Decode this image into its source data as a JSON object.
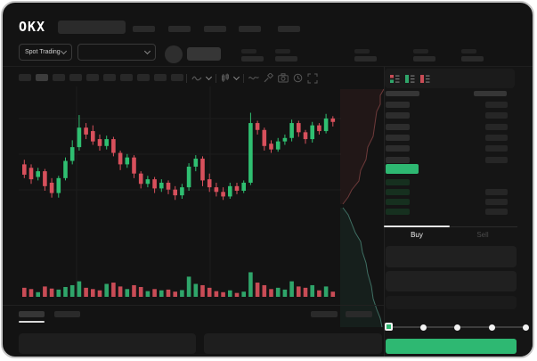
{
  "app": {
    "logo_text": "OKX",
    "nav_item_count": 5
  },
  "ticker_bar": {
    "market_selector_label": "Spot Trading",
    "stat_group_count": 5
  },
  "chart_toolbar": {
    "interval_pill_count": 10,
    "active_pill_index": 1,
    "icons": [
      "indicator-dropdown-icon",
      "candle-type-dropdown-icon",
      "line-tool-icon",
      "brush-icon",
      "camera-icon",
      "history-icon",
      "fullscreen-icon"
    ]
  },
  "order_book": {
    "view_mode_icons": [
      "book-combined-icon",
      "book-bids-icon",
      "book-asks-icon"
    ],
    "ask_rows": 6,
    "bid_rows": 4,
    "header_columns": 2
  },
  "trade_form": {
    "buy_tab": "Buy",
    "sell_tab": "Sell",
    "input_count": 2,
    "slider_stops": 5,
    "slider_active_stop": 0
  },
  "bottom_panel": {
    "tab_count": 2,
    "active_tab_index": 0,
    "action_count": 2,
    "panel_count": 2
  },
  "colors": {
    "accent_green": "#2EB872",
    "candle_up": "#2FBF71",
    "candle_down": "#D8505C",
    "volume_up": "#2FA56A",
    "volume_down": "#C94C56",
    "bid_row": "#16301F",
    "ask_row": "#2D2D2D",
    "amount_bar": "#262626",
    "depth_ask_line": "#6E3A3A",
    "depth_bid_line": "#3F6F63",
    "grid_line": "#1D1D1D"
  },
  "chart_data": {
    "type": "candlestick",
    "title": "",
    "ylim": [
      0,
      100
    ],
    "grid": true,
    "legend": "none",
    "candles": [
      [
        52,
        56,
        40,
        43,
        35
      ],
      [
        49,
        52,
        35,
        39,
        30
      ],
      [
        41,
        49,
        38,
        46,
        18
      ],
      [
        46,
        48,
        29,
        33,
        40
      ],
      [
        36,
        40,
        23,
        27,
        32
      ],
      [
        27,
        42,
        23,
        40,
        28
      ],
      [
        40,
        58,
        38,
        55,
        38
      ],
      [
        55,
        73,
        52,
        67,
        45
      ],
      [
        67,
        95,
        64,
        84,
        60
      ],
      [
        84,
        88,
        74,
        78,
        35
      ],
      [
        81,
        86,
        69,
        72,
        30
      ],
      [
        74,
        78,
        64,
        68,
        25
      ],
      [
        68,
        77,
        65,
        74,
        50
      ],
      [
        74,
        76,
        59,
        62,
        55
      ],
      [
        62,
        64,
        47,
        52,
        40
      ],
      [
        52,
        61,
        49,
        58,
        30
      ],
      [
        58,
        60,
        40,
        44,
        45
      ],
      [
        44,
        46,
        31,
        35,
        38
      ],
      [
        35,
        42,
        32,
        39,
        22
      ],
      [
        39,
        41,
        27,
        31,
        30
      ],
      [
        31,
        39,
        28,
        36,
        25
      ],
      [
        36,
        38,
        26,
        30,
        28
      ],
      [
        30,
        33,
        21,
        25,
        20
      ],
      [
        25,
        35,
        22,
        32,
        26
      ],
      [
        32,
        53,
        29,
        50,
        78
      ],
      [
        50,
        60,
        46,
        57,
        50
      ],
      [
        57,
        59,
        33,
        38,
        45
      ],
      [
        39,
        44,
        28,
        32,
        35
      ],
      [
        32,
        36,
        24,
        28,
        22
      ],
      [
        28,
        32,
        21,
        24,
        18
      ],
      [
        24,
        36,
        22,
        33,
        25
      ],
      [
        33,
        36,
        26,
        29,
        15
      ],
      [
        29,
        38,
        27,
        36,
        20
      ],
      [
        36,
        97,
        34,
        88,
        95
      ],
      [
        88,
        90,
        78,
        82,
        55
      ],
      [
        82,
        84,
        64,
        68,
        45
      ],
      [
        70,
        73,
        62,
        65,
        30
      ],
      [
        65,
        75,
        63,
        72,
        35
      ],
      [
        72,
        78,
        69,
        75,
        28
      ],
      [
        75,
        91,
        72,
        88,
        60
      ],
      [
        88,
        90,
        76,
        80,
        40
      ],
      [
        80,
        82,
        70,
        74,
        35
      ],
      [
        74,
        89,
        71,
        86,
        45
      ],
      [
        86,
        88,
        78,
        81,
        25
      ],
      [
        81,
        96,
        79,
        92,
        40
      ],
      [
        92,
        94,
        85,
        89,
        20
      ]
    ]
  }
}
